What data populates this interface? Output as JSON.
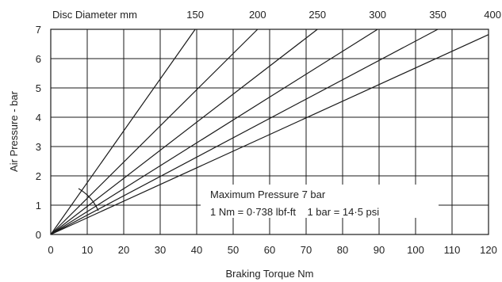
{
  "chart_data": {
    "type": "line",
    "title": "",
    "xlabel": "Braking Torque Nm",
    "ylabel": "Air Pressure - bar",
    "top_axis_label": "Disc Diameter mm",
    "xlim": [
      0,
      120
    ],
    "ylim": [
      0,
      7
    ],
    "x_ticks": [
      0,
      10,
      20,
      30,
      40,
      50,
      60,
      70,
      80,
      90,
      100,
      110,
      120
    ],
    "y_ticks": [
      0,
      1,
      2,
      3,
      4,
      5,
      6,
      7
    ],
    "grid": true,
    "series": [
      {
        "disc_diameter_mm": 150,
        "points": [
          [
            0,
            0
          ],
          [
            39.6,
            7
          ]
        ]
      },
      {
        "disc_diameter_mm": 200,
        "points": [
          [
            0,
            0
          ],
          [
            56.7,
            7
          ]
        ]
      },
      {
        "disc_diameter_mm": 250,
        "points": [
          [
            0,
            0
          ],
          [
            73.1,
            7
          ]
        ]
      },
      {
        "disc_diameter_mm": 300,
        "points": [
          [
            0,
            0
          ],
          [
            89.6,
            7
          ]
        ]
      },
      {
        "disc_diameter_mm": 350,
        "points": [
          [
            0,
            0
          ],
          [
            106.1,
            7
          ]
        ]
      },
      {
        "disc_diameter_mm": 400,
        "points": [
          [
            0,
            0
          ],
          [
            120,
            6.82
          ]
        ]
      }
    ],
    "top_tick_labels": [
      "150",
      "200",
      "250",
      "300",
      "350",
      "400"
    ],
    "annotations": {
      "note_line1": "Maximum Pressure 7 bar",
      "note_line2": "1 Nm = 0·738 lbf-ft    1 bar = 14·5 psi"
    }
  }
}
